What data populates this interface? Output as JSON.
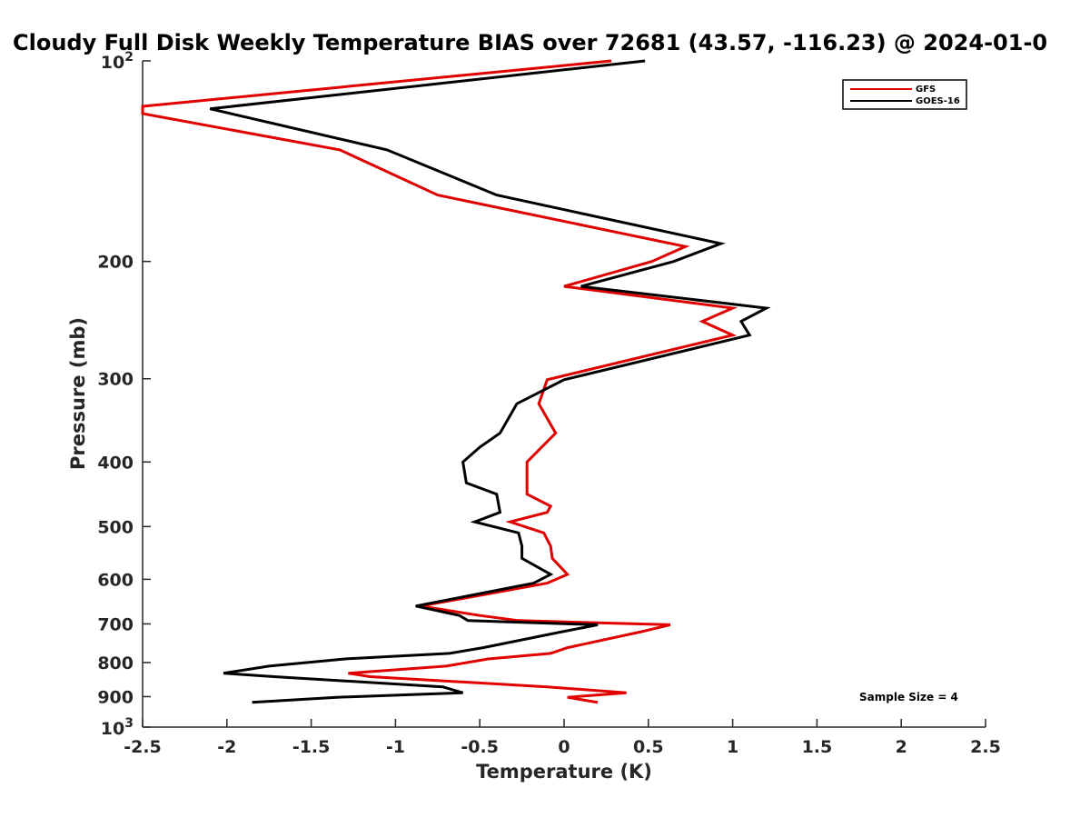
{
  "chart_data": {
    "type": "line",
    "title": "Cloudy Full Disk Weekly Temperature BIAS over 72681 (43.57, -116.23) @ 2024-01-0",
    "xlabel": "Temperature (K)",
    "ylabel": "Pressure (mb)",
    "xlim": [
      -2.5,
      2.5
    ],
    "ylim": [
      100,
      1000
    ],
    "y_scale": "log",
    "y_reversed": true,
    "x_ticks": [
      -2.5,
      -2,
      -1.5,
      -1,
      -0.5,
      0,
      0.5,
      1,
      1.5,
      2,
      2.5
    ],
    "x_tick_labels": [
      "-2.5",
      "-2",
      "-1.5",
      "-1",
      "-0.5",
      "0",
      "0.5",
      "1",
      "1.5",
      "2",
      "2.5"
    ],
    "y_ticks": [
      200,
      300,
      400,
      500,
      600,
      700,
      800,
      900
    ],
    "y_tick_labels": [
      "200",
      "300",
      "400",
      "500",
      "600",
      "700",
      "800",
      "900"
    ],
    "y_end_labels": [
      {
        "value": 100,
        "base": "10",
        "exp": "2"
      },
      {
        "value": 1000,
        "base": "10",
        "exp": "3"
      }
    ],
    "grid": false,
    "legend": {
      "location": "top-right",
      "entries": [
        "GFS",
        "GOES-16"
      ]
    },
    "annotation": "Sample Size = 4",
    "series": [
      {
        "name": "GFS",
        "color": "#e00000",
        "points": [
          [
            0.28,
            100
          ],
          [
            -2.5,
            117
          ],
          [
            -2.5,
            120
          ],
          [
            -1.33,
            136
          ],
          [
            -0.75,
            159
          ],
          [
            0.72,
            190
          ],
          [
            0.52,
            200
          ],
          [
            0.0,
            218
          ],
          [
            1.0,
            235
          ],
          [
            0.82,
            246
          ],
          [
            1.0,
            258
          ],
          [
            -0.1,
            301
          ],
          [
            -0.15,
            327
          ],
          [
            -0.05,
            362
          ],
          [
            -0.22,
            400
          ],
          [
            -0.22,
            447
          ],
          [
            -0.08,
            466
          ],
          [
            -0.1,
            476
          ],
          [
            -0.32,
            492
          ],
          [
            -0.12,
            511
          ],
          [
            -0.08,
            535
          ],
          [
            -0.07,
            558
          ],
          [
            0.02,
            590
          ],
          [
            -0.1,
            608
          ],
          [
            -0.85,
            658
          ],
          [
            -0.5,
            680
          ],
          [
            -0.27,
            692
          ],
          [
            0.63,
            702
          ],
          [
            0.45,
            720
          ],
          [
            0.02,
            760
          ],
          [
            -0.08,
            775
          ],
          [
            -0.45,
            790
          ],
          [
            -0.7,
            810
          ],
          [
            -1.28,
            830
          ],
          [
            -1.15,
            840
          ],
          [
            -0.1,
            870
          ],
          [
            0.37,
            888
          ],
          [
            0.02,
            902
          ],
          [
            0.2,
            918
          ]
        ]
      },
      {
        "name": "GOES-16",
        "color": "#000000",
        "points": [
          [
            0.48,
            100
          ],
          [
            -2.1,
            118
          ],
          [
            -1.05,
            136
          ],
          [
            -0.4,
            159
          ],
          [
            0.93,
            188
          ],
          [
            0.65,
            200
          ],
          [
            0.1,
            218
          ],
          [
            1.2,
            235
          ],
          [
            1.05,
            246
          ],
          [
            1.1,
            258
          ],
          [
            0.0,
            301
          ],
          [
            -0.28,
            327
          ],
          [
            -0.38,
            362
          ],
          [
            -0.5,
            380
          ],
          [
            -0.6,
            400
          ],
          [
            -0.58,
            430
          ],
          [
            -0.4,
            447
          ],
          [
            -0.38,
            476
          ],
          [
            -0.53,
            492
          ],
          [
            -0.27,
            511
          ],
          [
            -0.25,
            535
          ],
          [
            -0.25,
            558
          ],
          [
            -0.08,
            590
          ],
          [
            -0.18,
            608
          ],
          [
            -0.88,
            658
          ],
          [
            -0.62,
            680
          ],
          [
            -0.57,
            692
          ],
          [
            0.2,
            702
          ],
          [
            -0.02,
            720
          ],
          [
            -0.48,
            760
          ],
          [
            -0.68,
            775
          ],
          [
            -1.3,
            790
          ],
          [
            -1.75,
            810
          ],
          [
            -2.02,
            830
          ],
          [
            -1.72,
            840
          ],
          [
            -0.72,
            870
          ],
          [
            -0.6,
            888
          ],
          [
            -1.35,
            902
          ],
          [
            -1.85,
            918
          ]
        ]
      }
    ]
  }
}
